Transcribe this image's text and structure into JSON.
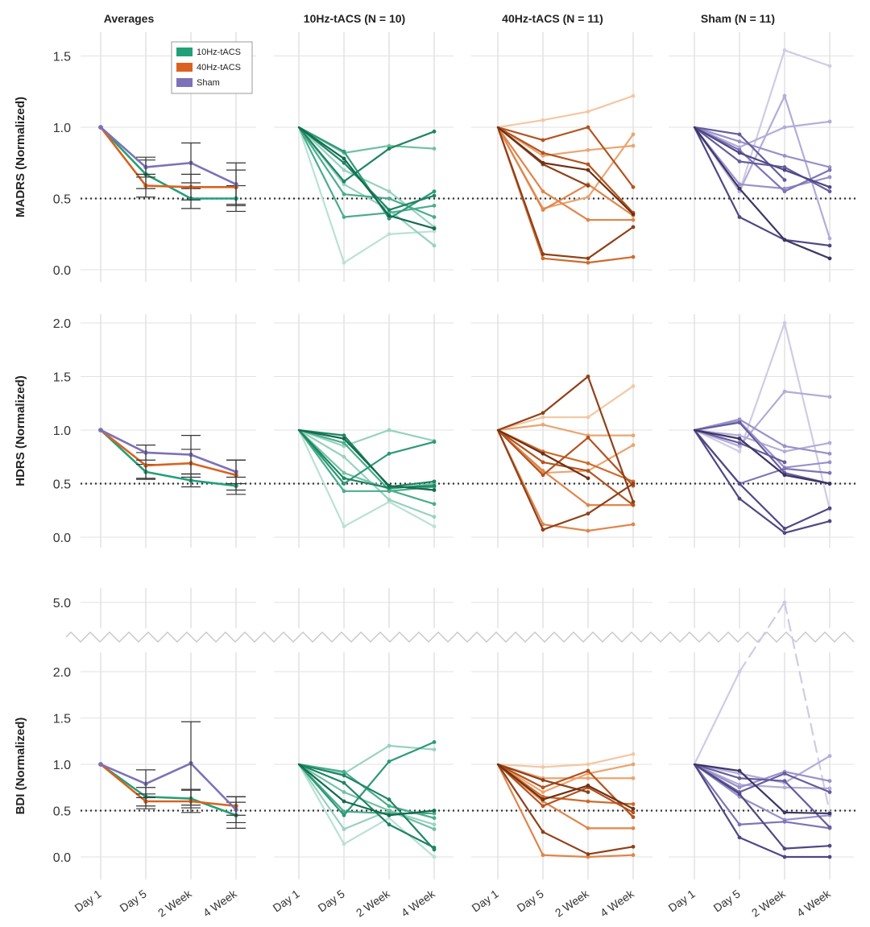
{
  "chart_data": {
    "type": "line",
    "figure_kind": "small-multiples line chart, 3 measures x 4 groups",
    "x_categories": [
      "Day 1",
      "Day 5",
      "2 Week",
      "4 Week"
    ],
    "reference_line": 0.5,
    "column_titles": [
      "Averages",
      "10Hz-tACS (N = 10)",
      "40Hz-tACS (N = 11)",
      "Sham (N = 11)"
    ],
    "legend": [
      {
        "label": "10Hz-tACS",
        "color": "#22a07a"
      },
      {
        "label": "40Hz-tACS",
        "color": "#d9621f"
      },
      {
        "label": "Sham",
        "color": "#7d71b8"
      }
    ],
    "palettes": {
      "10hz": [
        "#b9e2d2",
        "#97d2bc",
        "#72c0a3",
        "#4aad8a",
        "#2c9a74",
        "#1d8561",
        "#136b4e"
      ],
      "40hz": [
        "#f4c7a2",
        "#eba56f",
        "#e0854a",
        "#cf6a2c",
        "#b3531f",
        "#8f4019",
        "#6e3214"
      ],
      "sham": [
        "#cfcbe6",
        "#b3acd8",
        "#9891c9",
        "#7d75b6",
        "#655d9f",
        "#4f4884",
        "#3b3564"
      ]
    },
    "rows": [
      {
        "measure": "MADRS",
        "ylabel": "MADRS (Normalized)",
        "ylim": [
          -0.08,
          1.68
        ],
        "yticks": [
          0.0,
          0.5,
          1.0,
          1.5
        ],
        "tick_labels": [
          "0.0",
          "0.5",
          "1.0",
          "1.5"
        ],
        "averages": [
          {
            "name": "10Hz-tACS",
            "color": "#22a07a",
            "values": [
              1.0,
              0.67,
              0.5,
              0.5
            ],
            "err": [
              0.0,
              0.1,
              0.07,
              0.09
            ]
          },
          {
            "name": "40Hz-tACS",
            "color": "#d9621f",
            "values": [
              1.0,
              0.59,
              0.58,
              0.58
            ],
            "err": [
              0.0,
              0.08,
              0.09,
              0.12
            ]
          },
          {
            "name": "Sham",
            "color": "#7d71b8",
            "values": [
              1.0,
              0.72,
              0.75,
              0.6
            ],
            "err": [
              0.0,
              0.07,
              0.14,
              0.15
            ]
          }
        ],
        "groups": {
          "10hz": [
            [
              1.0,
              0.05,
              0.25,
              0.27
            ],
            [
              1.0,
              0.6,
              0.42,
              0.17
            ],
            [
              1.0,
              0.7,
              0.55,
              0.3
            ],
            [
              1.0,
              0.82,
              0.87,
              0.85
            ],
            [
              1.0,
              0.53,
              0.5,
              0.37
            ],
            [
              1.0,
              0.37,
              0.4,
              0.45
            ],
            [
              1.0,
              0.83,
              0.36,
              0.55
            ],
            [
              1.0,
              0.62,
              0.85,
              0.97
            ],
            [
              1.0,
              0.75,
              0.42,
              0.52
            ],
            [
              1.0,
              0.78,
              0.38,
              0.29
            ]
          ],
          "40hz": [
            [
              1.0,
              1.05,
              1.11,
              1.22
            ],
            [
              1.0,
              0.8,
              0.84,
              0.87
            ],
            [
              1.0,
              0.43,
              0.51,
              0.95
            ],
            [
              1.0,
              0.55,
              0.35,
              0.35
            ],
            [
              1.0,
              0.42,
              0.6,
              0.38
            ],
            [
              1.0,
              0.08,
              0.05,
              0.09
            ],
            [
              1.0,
              0.82,
              0.74,
              0.4
            ],
            [
              1.0,
              0.91,
              1.0,
              0.58
            ],
            [
              1.0,
              0.11,
              0.08,
              0.3
            ],
            [
              1.0,
              0.74,
              0.59,
              null
            ],
            [
              1.0,
              0.75,
              0.7,
              0.39
            ]
          ],
          "sham": [
            [
              1.0,
              0.55,
              1.54,
              1.43
            ],
            [
              1.0,
              0.86,
              1.0,
              1.04
            ],
            [
              1.0,
              0.55,
              1.22,
              0.22
            ],
            [
              1.0,
              0.6,
              0.57,
              0.65
            ],
            [
              1.0,
              0.9,
              0.8,
              0.72
            ],
            [
              1.0,
              0.84,
              0.55,
              0.7
            ],
            [
              1.0,
              0.95,
              0.63,
              null
            ],
            [
              1.0,
              0.76,
              0.72,
              0.55
            ],
            [
              1.0,
              0.82,
              0.7,
              0.58
            ],
            [
              1.0,
              0.37,
              0.21,
              0.17
            ],
            [
              1.0,
              0.57,
              0.21,
              0.08
            ]
          ]
        }
      },
      {
        "measure": "HDRS",
        "ylabel": "HDRS (Normalized)",
        "ylim": [
          -0.08,
          2.2
        ],
        "yticks": [
          0.0,
          0.5,
          1.0,
          1.5,
          2.0
        ],
        "tick_labels": [
          "0.0",
          "0.5",
          "1.0",
          "1.5",
          "2.0"
        ],
        "averages": [
          {
            "name": "10Hz-tACS",
            "color": "#22a07a",
            "values": [
              1.0,
              0.61,
              0.53,
              0.48
            ],
            "err": [
              0.0,
              0.07,
              0.06,
              0.08
            ]
          },
          {
            "name": "40Hz-tACS",
            "color": "#d9621f",
            "values": [
              1.0,
              0.67,
              0.69,
              0.58
            ],
            "err": [
              0.0,
              0.12,
              0.13,
              0.14
            ]
          },
          {
            "name": "Sham",
            "color": "#7d71b8",
            "values": [
              1.0,
              0.79,
              0.77,
              0.61
            ],
            "err": [
              0.0,
              0.07,
              0.18,
              0.11
            ]
          }
        ],
        "groups": {
          "10hz": [
            [
              1.0,
              0.1,
              0.33,
              0.1
            ],
            [
              1.0,
              0.75,
              0.35,
              0.19
            ],
            [
              1.0,
              0.85,
              1.0,
              0.9
            ],
            [
              1.0,
              0.6,
              0.45,
              0.5
            ],
            [
              1.0,
              0.43,
              0.43,
              0.47
            ],
            [
              1.0,
              0.88,
              0.44,
              0.31
            ],
            [
              1.0,
              0.5,
              0.78,
              0.89
            ],
            [
              1.0,
              0.95,
              0.47,
              0.52
            ],
            [
              1.0,
              0.55,
              0.46,
              0.48
            ],
            [
              1.0,
              0.92,
              0.48,
              0.44
            ]
          ],
          "40hz": [
            [
              1.0,
              1.12,
              1.12,
              1.41
            ],
            [
              1.0,
              1.05,
              0.95,
              0.95
            ],
            [
              1.0,
              0.6,
              0.62,
              0.86
            ],
            [
              1.0,
              0.62,
              0.3,
              0.3
            ],
            [
              1.0,
              0.12,
              0.06,
              0.12
            ],
            [
              1.0,
              0.8,
              0.69,
              0.52
            ],
            [
              1.0,
              0.58,
              0.93,
              0.48
            ],
            [
              1.0,
              0.7,
              0.62,
              0.3
            ],
            [
              1.0,
              0.07,
              0.22,
              0.5
            ],
            [
              1.0,
              1.16,
              1.5,
              0.33
            ],
            [
              1.0,
              0.78,
              0.55,
              null
            ]
          ],
          "sham": [
            [
              1.0,
              0.8,
              2.0,
              0.26
            ],
            [
              1.0,
              0.85,
              1.36,
              1.31
            ],
            [
              1.0,
              0.95,
              0.8,
              0.88
            ],
            [
              1.0,
              1.1,
              0.85,
              0.78
            ],
            [
              1.0,
              1.08,
              0.65,
              0.7
            ],
            [
              1.0,
              0.5,
              0.64,
              0.6
            ],
            [
              1.0,
              0.88,
              0.7,
              null
            ],
            [
              1.0,
              1.07,
              0.6,
              0.5
            ],
            [
              1.0,
              0.36,
              0.04,
              0.15
            ],
            [
              1.0,
              0.5,
              0.08,
              0.27
            ],
            [
              1.0,
              0.92,
              0.58,
              0.5
            ]
          ]
        }
      },
      {
        "measure": "BDI",
        "ylabel": "BDI (Normalized)",
        "ylim": [
          -0.08,
          2.3
        ],
        "yticks": [
          0.0,
          0.5,
          1.0,
          1.5,
          2.0
        ],
        "tick_labels": [
          "0.0",
          "0.5",
          "1.0",
          "1.5",
          "2.0"
        ],
        "broken_axis": {
          "upper_tick": 5.0,
          "upper_label": "5.0"
        },
        "averages": [
          {
            "name": "10Hz-tACS",
            "color": "#22a07a",
            "values": [
              1.0,
              0.65,
              0.63,
              0.45
            ],
            "err": [
              0.0,
              0.1,
              0.1,
              0.14
            ]
          },
          {
            "name": "40Hz-tACS",
            "color": "#d9621f",
            "values": [
              1.0,
              0.6,
              0.6,
              0.55
            ],
            "err": [
              0.0,
              0.08,
              0.12,
              0.1
            ]
          },
          {
            "name": "Sham",
            "color": "#7d71b8",
            "values": [
              1.0,
              0.79,
              1.01,
              0.51
            ],
            "err": [
              0.0,
              0.15,
              0.45,
              0.14
            ]
          }
        ],
        "groups": {
          "10hz": [
            [
              1.0,
              0.14,
              0.42,
              0.0
            ],
            [
              1.0,
              0.3,
              0.5,
              0.35
            ],
            [
              1.0,
              0.9,
              1.2,
              1.16
            ],
            [
              1.0,
              0.7,
              0.5,
              0.3
            ],
            [
              1.0,
              0.92,
              0.55,
              0.42
            ],
            [
              1.0,
              0.49,
              0.47,
              0.47
            ],
            [
              1.0,
              0.45,
              1.03,
              1.24
            ],
            [
              1.0,
              0.8,
              0.35,
              0.1
            ],
            [
              1.0,
              0.88,
              0.62,
              0.08
            ],
            [
              1.0,
              0.6,
              0.45,
              0.5
            ]
          ],
          "40hz": [
            [
              1.0,
              0.97,
              1.0,
              1.11
            ],
            [
              1.0,
              0.85,
              0.85,
              0.85
            ],
            [
              1.0,
              0.7,
              0.9,
              1.0
            ],
            [
              1.0,
              0.6,
              0.31,
              0.31
            ],
            [
              1.0,
              0.02,
              0.0,
              0.02
            ],
            [
              1.0,
              0.65,
              0.6,
              0.57
            ],
            [
              1.0,
              0.55,
              0.75,
              0.48
            ],
            [
              1.0,
              0.75,
              0.93,
              0.43
            ],
            [
              1.0,
              0.27,
              0.03,
              0.11
            ],
            [
              1.0,
              0.83,
              0.7,
              null
            ],
            [
              1.0,
              0.62,
              0.77,
              0.52
            ]
          ],
          "sham": [
            [
              1.0,
              2.0,
              5.0,
              0.48
            ],
            [
              1.0,
              0.9,
              0.8,
              1.09
            ],
            [
              1.0,
              0.78,
              0.75,
              0.74
            ],
            [
              1.0,
              0.75,
              0.92,
              0.82
            ],
            [
              1.0,
              0.65,
              0.4,
              0.45
            ],
            [
              1.0,
              0.35,
              0.38,
              0.31
            ],
            [
              1.0,
              0.85,
              0.82,
              0.32
            ],
            [
              1.0,
              0.7,
              0.9,
              0.7
            ],
            [
              1.0,
              0.68,
              0.09,
              0.12
            ],
            [
              1.0,
              0.21,
              0.0,
              0.0
            ],
            [
              1.0,
              0.93,
              0.48,
              0.47
            ]
          ]
        }
      }
    ]
  }
}
